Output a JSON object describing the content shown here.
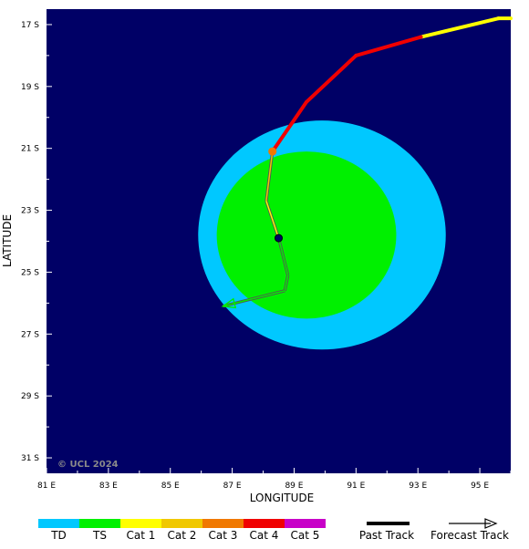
{
  "map": {
    "copyright": "© UCL 2024",
    "x_axis_title": "LONGITUDE",
    "y_axis_title": "LATITUDE",
    "background_color": "#000066",
    "x_ticks": [
      "81 E",
      "83 E",
      "85 E",
      "87 E",
      "89 E",
      "91 E",
      "93 E",
      "95 E"
    ],
    "y_ticks": [
      "17 S",
      "19 S",
      "21 S",
      "23 S",
      "25 S",
      "27 S",
      "29 S",
      "31 S"
    ],
    "lon_range": [
      81,
      96
    ],
    "lat_range_south": [
      16.5,
      31.5
    ],
    "wind_fields": [
      {
        "category": "TD",
        "color": "#00c8ff",
        "center_lon": 89.9,
        "center_lat_south": 23.8,
        "radius_lon_deg": 4.0,
        "radius_lat_deg": 3.7
      },
      {
        "category": "TS",
        "color": "#00f000",
        "center_lon": 89.4,
        "center_lat_south": 23.8,
        "radius_lon_deg": 2.9,
        "radius_lat_deg": 2.7
      }
    ],
    "storm_position": {
      "lon": 88.5,
      "lat_south": 23.9
    },
    "past_track": [
      {
        "lon": 96.0,
        "lat_south": 16.8,
        "cat": "Cat 2"
      },
      {
        "lon": 95.6,
        "lat_south": 16.8,
        "cat": "Cat 1"
      },
      {
        "lon": 93.1,
        "lat_south": 17.4,
        "cat": "Cat 1"
      },
      {
        "lon": 91.0,
        "lat_south": 18.0,
        "cat": "Cat 4"
      },
      {
        "lon": 89.4,
        "lat_south": 19.5,
        "cat": "Cat 4"
      },
      {
        "lon": 88.3,
        "lat_south": 21.1,
        "cat": "Cat 4"
      }
    ],
    "forecast_track": [
      {
        "lon": 88.3,
        "lat_south": 21.1,
        "cat": "Cat 2"
      },
      {
        "lon": 88.1,
        "lat_south": 22.7,
        "cat": "Cat 1"
      },
      {
        "lon": 88.5,
        "lat_south": 23.9,
        "cat": "TS"
      },
      {
        "lon": 88.8,
        "lat_south": 25.1,
        "cat": "TS"
      },
      {
        "lon": 88.7,
        "lat_south": 25.6,
        "cat": "TS"
      },
      {
        "lon": 86.7,
        "lat_south": 26.1,
        "cat": "TD"
      }
    ],
    "current_marker": {
      "lon": 88.3,
      "lat_south": 21.1,
      "color": "#f07800"
    }
  },
  "legend": {
    "categories": [
      {
        "label": "TD",
        "color": "#00c8ff"
      },
      {
        "label": "TS",
        "color": "#00f000"
      },
      {
        "label": "Cat 1",
        "color": "#ffff00"
      },
      {
        "label": "Cat 2",
        "color": "#f0c800"
      },
      {
        "label": "Cat 3",
        "color": "#f07800"
      },
      {
        "label": "Cat 4",
        "color": "#f00000"
      },
      {
        "label": "Cat 5",
        "color": "#c800c8"
      }
    ],
    "past_track_label": "Past Track",
    "forecast_track_label": "Forecast Track"
  }
}
